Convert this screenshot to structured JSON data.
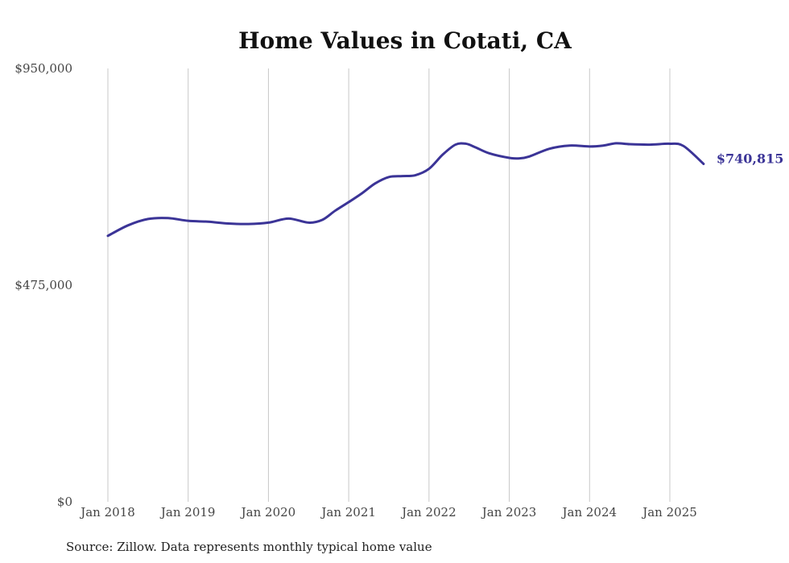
{
  "colors": {
    "line": "#3b3497",
    "grid": "#c8c8c8"
  },
  "source_note": "Source: Zillow. Data represents monthly typical home value",
  "chart_data": {
    "type": "line",
    "title": "Home Values in Cotati, CA",
    "xlabel": "",
    "ylabel": "",
    "ylim": [
      0,
      950000
    ],
    "yticks": [
      {
        "value": 0,
        "label": "$0"
      },
      {
        "value": 475000,
        "label": "$475,000"
      },
      {
        "value": 950000,
        "label": "$950,000"
      }
    ],
    "xticks": [
      {
        "value": 2018.0,
        "label": "Jan 2018"
      },
      {
        "value": 2019.0,
        "label": "Jan 2019"
      },
      {
        "value": 2020.0,
        "label": "Jan 2020"
      },
      {
        "value": 2021.0,
        "label": "Jan 2021"
      },
      {
        "value": 2022.0,
        "label": "Jan 2022"
      },
      {
        "value": 2023.0,
        "label": "Jan 2023"
      },
      {
        "value": 2024.0,
        "label": "Jan 2024"
      },
      {
        "value": 2025.0,
        "label": "Jan 2025"
      }
    ],
    "grid": "vertical",
    "end_label": "$740,815",
    "series": [
      {
        "x": [
          2018.0,
          2018.25,
          2018.5,
          2018.75,
          2019.0,
          2019.25,
          2019.5,
          2019.75,
          2020.0,
          2020.25,
          2020.5,
          2020.67,
          2020.83,
          2021.0,
          2021.17,
          2021.33,
          2021.5,
          2021.67,
          2021.83,
          2022.0,
          2022.17,
          2022.33,
          2022.46,
          2022.58,
          2022.75,
          2023.0,
          2023.13,
          2023.25,
          2023.5,
          2023.75,
          2024.0,
          2024.17,
          2024.33,
          2024.5,
          2024.75,
          2025.0,
          2025.17,
          2025.42
        ],
        "y": [
          583000,
          606000,
          620000,
          622000,
          616000,
          614000,
          610000,
          609000,
          612000,
          621000,
          612000,
          618000,
          638000,
          657000,
          677000,
          698000,
          712000,
          714000,
          716000,
          730000,
          761000,
          783000,
          785000,
          777000,
          764000,
          754000,
          753000,
          757000,
          774000,
          781000,
          779000,
          781000,
          786000,
          784000,
          783000,
          785000,
          780000,
          740815
        ]
      }
    ]
  }
}
